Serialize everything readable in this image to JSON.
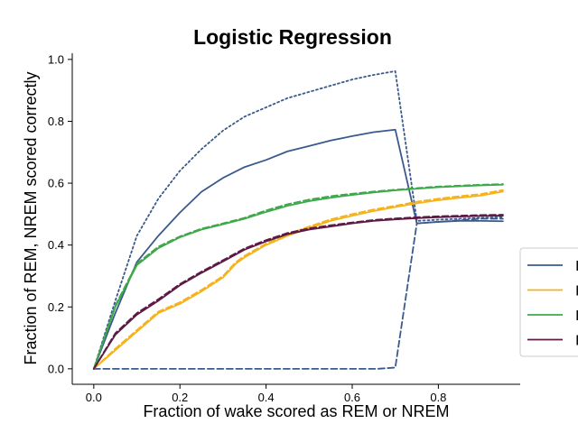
{
  "chart_data": {
    "type": "line",
    "title": "Logistic Regression",
    "xlabel": "Fraction of wake scored as REM or NREM",
    "ylabel": "Fraction of REM, NREM scored correctly",
    "xlim": [
      -0.05,
      0.99
    ],
    "ylim": [
      -0.05,
      1.02
    ],
    "xticks": [
      0.0,
      0.2,
      0.4,
      0.6,
      0.8
    ],
    "xtick_labels": [
      "0.0",
      "0.2",
      "0.4",
      "0.6",
      "0.8"
    ],
    "yticks": [
      0.0,
      0.2,
      0.4,
      0.6,
      0.8,
      1.0
    ],
    "ytick_labels": [
      "0.0",
      "0.2",
      "0.4",
      "0.6",
      "0.8",
      "1.0"
    ],
    "grid": false,
    "legend_position": "right-center",
    "series": [
      {
        "color": "#3a5a8c",
        "dash": "dotted",
        "x": [
          0.0,
          0.05,
          0.1,
          0.15,
          0.2,
          0.25,
          0.3,
          0.35,
          0.4,
          0.45,
          0.5,
          0.55,
          0.6,
          0.65,
          0.7,
          0.75,
          0.8,
          0.85,
          0.9,
          0.95
        ],
        "y": [
          0.0,
          0.22,
          0.43,
          0.55,
          0.64,
          0.71,
          0.77,
          0.815,
          0.845,
          0.875,
          0.895,
          0.915,
          0.935,
          0.95,
          0.962,
          0.478,
          0.482,
          0.485,
          0.488,
          0.49
        ]
      },
      {
        "color": "#3a5a8c",
        "dash": "solid",
        "x": [
          0.0,
          0.05,
          0.1,
          0.15,
          0.2,
          0.25,
          0.3,
          0.35,
          0.4,
          0.45,
          0.5,
          0.55,
          0.6,
          0.65,
          0.7,
          0.75,
          0.8,
          0.85,
          0.9,
          0.95
        ],
        "y": [
          0.0,
          0.18,
          0.345,
          0.43,
          0.505,
          0.572,
          0.617,
          0.652,
          0.675,
          0.703,
          0.72,
          0.738,
          0.752,
          0.765,
          0.773,
          0.47,
          0.475,
          0.478,
          0.478,
          0.477
        ]
      },
      {
        "color": "#3a5a8c",
        "dash": "dashed",
        "x": [
          0.0,
          0.1,
          0.2,
          0.3,
          0.4,
          0.5,
          0.6,
          0.66,
          0.7,
          0.75,
          0.8,
          0.85,
          0.9,
          0.95
        ],
        "y": [
          0.0,
          0.0,
          0.0,
          0.0,
          0.0,
          0.0,
          0.0,
          0.0,
          0.004,
          0.47,
          0.475,
          0.48,
          0.485,
          0.485
        ]
      },
      {
        "color": "#f5b21b",
        "dash": "solid",
        "x": [
          0.0,
          0.05,
          0.1,
          0.15,
          0.2,
          0.25,
          0.3,
          0.33,
          0.35,
          0.4,
          0.45,
          0.5,
          0.55,
          0.6,
          0.65,
          0.7,
          0.75,
          0.8,
          0.85,
          0.9,
          0.95
        ],
        "y": [
          0.0,
          0.06,
          0.12,
          0.18,
          0.21,
          0.25,
          0.295,
          0.34,
          0.36,
          0.4,
          0.43,
          0.455,
          0.478,
          0.495,
          0.51,
          0.523,
          0.535,
          0.545,
          0.553,
          0.56,
          0.573
        ]
      },
      {
        "color": "#f5b21b",
        "dash": "dashed",
        "x": [
          0.0,
          0.05,
          0.1,
          0.15,
          0.2,
          0.25,
          0.3,
          0.33,
          0.35,
          0.4,
          0.45,
          0.5,
          0.55,
          0.6,
          0.65,
          0.7,
          0.75,
          0.8,
          0.85,
          0.9,
          0.95
        ],
        "y": [
          0.0,
          0.065,
          0.125,
          0.185,
          0.215,
          0.255,
          0.3,
          0.345,
          0.365,
          0.405,
          0.435,
          0.46,
          0.483,
          0.5,
          0.515,
          0.527,
          0.54,
          0.55,
          0.558,
          0.565,
          0.578
        ]
      },
      {
        "color": "#3ea84a",
        "dash": "solid",
        "x": [
          0.0,
          0.05,
          0.1,
          0.15,
          0.2,
          0.25,
          0.3,
          0.35,
          0.4,
          0.45,
          0.5,
          0.55,
          0.6,
          0.65,
          0.7,
          0.75,
          0.8,
          0.85,
          0.9,
          0.95
        ],
        "y": [
          0.0,
          0.2,
          0.335,
          0.39,
          0.425,
          0.45,
          0.467,
          0.485,
          0.507,
          0.527,
          0.542,
          0.553,
          0.562,
          0.57,
          0.577,
          0.582,
          0.587,
          0.59,
          0.593,
          0.595
        ]
      },
      {
        "color": "#3ea84a",
        "dash": "dashed",
        "x": [
          0.0,
          0.05,
          0.1,
          0.15,
          0.2,
          0.25,
          0.3,
          0.35,
          0.4,
          0.45,
          0.5,
          0.55,
          0.6,
          0.65,
          0.7,
          0.75,
          0.8,
          0.85,
          0.9,
          0.95
        ],
        "y": [
          0.0,
          0.205,
          0.34,
          0.395,
          0.428,
          0.453,
          0.47,
          0.488,
          0.512,
          0.532,
          0.547,
          0.558,
          0.566,
          0.573,
          0.579,
          0.584,
          0.589,
          0.592,
          0.595,
          0.597
        ]
      },
      {
        "color": "#5c1a45",
        "dash": "solid",
        "x": [
          0.0,
          0.05,
          0.1,
          0.15,
          0.2,
          0.25,
          0.3,
          0.35,
          0.4,
          0.45,
          0.5,
          0.55,
          0.6,
          0.65,
          0.7,
          0.75,
          0.8,
          0.85,
          0.9,
          0.95
        ],
        "y": [
          0.0,
          0.11,
          0.175,
          0.22,
          0.27,
          0.31,
          0.347,
          0.385,
          0.412,
          0.435,
          0.45,
          0.46,
          0.47,
          0.478,
          0.483,
          0.487,
          0.49,
          0.492,
          0.494,
          0.495
        ]
      },
      {
        "color": "#5c1a45",
        "dash": "dashed",
        "x": [
          0.0,
          0.05,
          0.1,
          0.15,
          0.2,
          0.25,
          0.3,
          0.35,
          0.4,
          0.45,
          0.5,
          0.55,
          0.6,
          0.65,
          0.7,
          0.75,
          0.8,
          0.85,
          0.9,
          0.95
        ],
        "y": [
          0.0,
          0.115,
          0.18,
          0.225,
          0.274,
          0.314,
          0.351,
          0.389,
          0.416,
          0.439,
          0.454,
          0.464,
          0.473,
          0.481,
          0.486,
          0.49,
          0.493,
          0.495,
          0.497,
          0.498
        ]
      }
    ],
    "legend": [
      {
        "color": "#3a5a8c",
        "label": "I"
      },
      {
        "color": "#f5b21b",
        "label": "I"
      },
      {
        "color": "#3ea84a",
        "label": "I"
      },
      {
        "color": "#5c1a45",
        "label": "I"
      }
    ]
  }
}
